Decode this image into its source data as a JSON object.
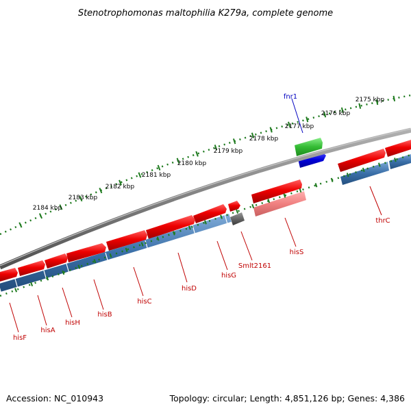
{
  "title": "Stenotrophomonas maltophilia K279a, complete genome",
  "accession": "Accession: NC_010943",
  "topology": "Topology: circular; Length: 4,851,126 bp; Genes: 4,386",
  "kbp_labels": [
    "2175 kbp",
    "2176 kbp",
    "2177 kbp",
    "2178 kbp",
    "2179 kbp",
    "2180 kbp",
    "2181 kbp",
    "2182 kbp",
    "2183 kbp",
    "2184 kbp"
  ],
  "genes": [
    {
      "name": "fnr1",
      "color": "#0000c0"
    },
    {
      "name": "thrC",
      "color": "#c00000"
    },
    {
      "name": "hisS",
      "color": "#c00000"
    },
    {
      "name": "Smlt2161",
      "color": "#c00000"
    },
    {
      "name": "hisG",
      "color": "#c00000"
    },
    {
      "name": "hisD",
      "color": "#c00000"
    },
    {
      "name": "hisC",
      "color": "#c00000"
    },
    {
      "name": "hisB",
      "color": "#c00000"
    },
    {
      "name": "hisH",
      "color": "#c00000"
    },
    {
      "name": "hisA",
      "color": "#c00000"
    },
    {
      "name": "hisF",
      "color": "#c00000"
    }
  ],
  "colors": {
    "cds_forward": "#e00000",
    "cds_light": "#f08080",
    "cog_blue": "#3a6fa8",
    "backbone": "#808080",
    "tick_green": "#1e7a1e",
    "green_feature": "#33bb33",
    "blue_feature": "#0000dd",
    "gray_feature": "#666666"
  }
}
